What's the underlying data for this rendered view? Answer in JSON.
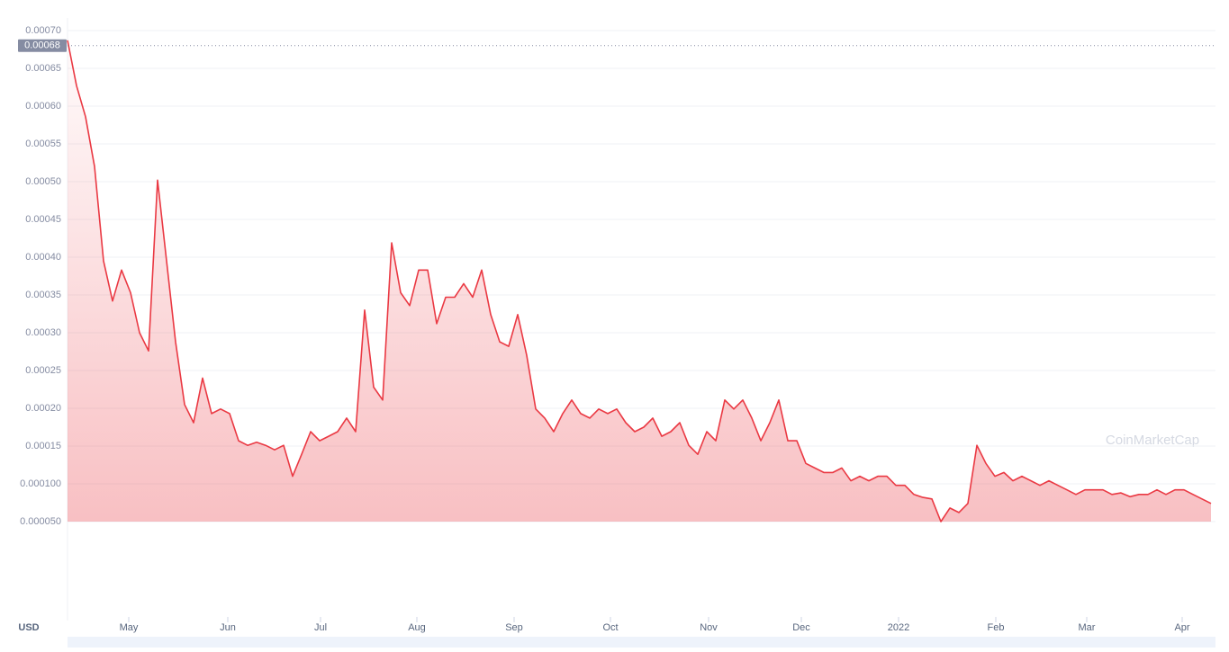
{
  "chart_data": {
    "type": "area",
    "currency_label": "USD",
    "watermark": "CoinMarketCap",
    "color": "#ea3943",
    "current_price": {
      "value": 0.00068,
      "label": "0.00068"
    },
    "values": [
      0.000687,
      0.000627,
      0.000586,
      0.00052,
      0.000395,
      0.000342,
      0.000383,
      0.000353,
      0.0003,
      0.000276,
      0.000502,
      0.000395,
      0.000288,
      0.000205,
      0.000181,
      0.00024,
      0.000193,
      0.000199,
      0.000193,
      0.000157,
      0.000151,
      0.000155,
      0.000151,
      0.000145,
      0.000151,
      0.00011,
      0.000139,
      0.000169,
      0.000157,
      0.000163,
      0.000169,
      0.000187,
      0.000169,
      0.00033,
      0.000228,
      0.000211,
      0.000419,
      0.000353,
      0.000336,
      0.000383,
      0.000383,
      0.000312,
      0.000347,
      0.000347,
      0.000365,
      0.000347,
      0.000383,
      0.000324,
      0.000288,
      0.000282,
      0.000324,
      0.00027,
      0.000199,
      0.000187,
      0.000169,
      0.000193,
      0.000211,
      0.000193,
      0.000187,
      0.000199,
      0.000193,
      0.000199,
      0.000181,
      0.000169,
      0.000175,
      0.000187,
      0.000163,
      0.000169,
      0.000181,
      0.000151,
      0.000139,
      0.000169,
      0.000157,
      0.000211,
      0.000199,
      0.000211,
      0.000187,
      0.000157,
      0.000181,
      0.000211,
      0.000157,
      0.000157,
      0.000127,
      0.000121,
      0.000115,
      0.000115,
      0.000121,
      0.000104,
      0.00011,
      0.000104,
      0.00011,
      0.00011,
      9.8e-05,
      9.8e-05,
      8.6e-05,
      8.2e-05,
      8e-05,
      5e-05,
      6.8e-05,
      6.2e-05,
      7.4e-05,
      0.000151,
      0.000127,
      0.00011,
      0.000115,
      0.000104,
      0.00011,
      0.000104,
      9.8e-05,
      0.000104,
      9.8e-05,
      9.2e-05,
      8.6e-05,
      9.2e-05,
      9.2e-05,
      9.2e-05,
      8.6e-05,
      8.8e-05,
      8.3e-05,
      8.6e-05,
      8.6e-05,
      9.2e-05,
      8.6e-05,
      9.2e-05,
      9.2e-05,
      8.6e-05,
      8e-05,
      7.4e-05
    ],
    "xlim": [
      0,
      127
    ],
    "xticks": [
      {
        "value": 6.8,
        "label": "May"
      },
      {
        "value": 17.8,
        "label": "Jun"
      },
      {
        "value": 28.1,
        "label": "Jul"
      },
      {
        "value": 38.8,
        "label": "Aug"
      },
      {
        "value": 49.6,
        "label": "Sep"
      },
      {
        "value": 60.3,
        "label": "Oct"
      },
      {
        "value": 71.2,
        "label": "Nov"
      },
      {
        "value": 81.5,
        "label": "Dec"
      },
      {
        "value": 92.3,
        "label": "2022"
      },
      {
        "value": 103.1,
        "label": "Feb"
      },
      {
        "value": 113.2,
        "label": "Mar"
      },
      {
        "value": 123.8,
        "label": "Apr"
      }
    ],
    "ylim": [
      5e-05,
      0.0007
    ],
    "yticks": [
      {
        "value": 0.0007,
        "label": "0.00070"
      },
      {
        "value": 0.00065,
        "label": "0.00065"
      },
      {
        "value": 0.0006,
        "label": "0.00060"
      },
      {
        "value": 0.00055,
        "label": "0.00055"
      },
      {
        "value": 0.0005,
        "label": "0.00050"
      },
      {
        "value": 0.00045,
        "label": "0.00045"
      },
      {
        "value": 0.0004,
        "label": "0.00040"
      },
      {
        "value": 0.00035,
        "label": "0.00035"
      },
      {
        "value": 0.0003,
        "label": "0.00030"
      },
      {
        "value": 0.00025,
        "label": "0.00025"
      },
      {
        "value": 0.0002,
        "label": "0.00020"
      },
      {
        "value": 0.00015,
        "label": "0.00015"
      },
      {
        "value": 0.0001,
        "label": "0.000100"
      },
      {
        "value": 5e-05,
        "label": "0.000050"
      }
    ],
    "grid": true
  }
}
